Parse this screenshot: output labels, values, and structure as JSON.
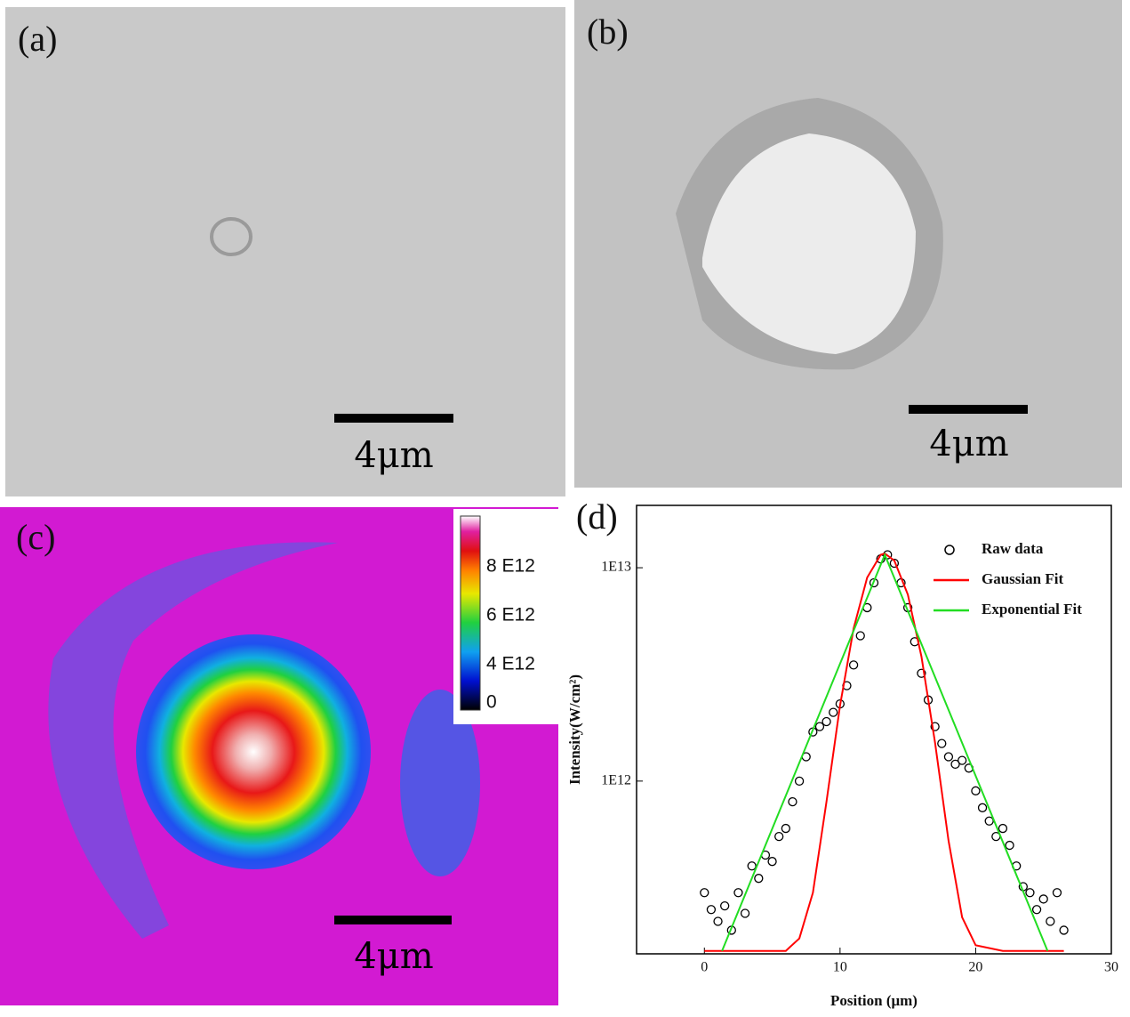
{
  "panels": {
    "a": {
      "label": "(a)",
      "scale_bar": "4μm"
    },
    "b": {
      "label": "(b)",
      "scale_bar": "4μm"
    },
    "c": {
      "label": "(c)",
      "scale_bar": "4μm",
      "colorbar": [
        "8 E12",
        "6 E12",
        "4 E12",
        "0"
      ]
    }
  },
  "chart_data": {
    "type": "line",
    "label": "(d)",
    "x_label": "Position (μm)",
    "y_label": "Intensity(W/cm²)",
    "xlim": [
      -5,
      30
    ],
    "xticks": [
      0,
      10,
      20,
      30
    ],
    "ylim": [
      155000000000.0,
      19600000000000.0
    ],
    "yscale": "log",
    "yticks": [
      {
        "value": 1000000000000.0,
        "label": "1E12"
      },
      {
        "value": 10000000000000.0,
        "label": "1E13"
      }
    ],
    "legend": "upper right",
    "series": [
      {
        "name": "Raw data",
        "color": "#000000",
        "mode": "markers",
        "x": [
          0,
          0.5,
          1,
          1.5,
          2,
          2.5,
          3,
          3.5,
          4,
          4.5,
          5,
          5.5,
          6,
          6.5,
          7,
          7.5,
          8,
          8.5,
          9,
          9.5,
          10,
          10.5,
          11,
          11.5,
          12,
          12.5,
          13,
          13.5,
          14,
          14.5,
          15,
          15.5,
          16,
          16.5,
          17,
          17.5,
          18,
          18.5,
          19,
          19.5,
          20,
          20.5,
          21,
          21.5,
          22,
          22.5,
          23,
          23.5,
          24,
          24.5,
          25,
          25.5,
          26,
          26.5
        ],
        "values": [
          300000000000.0,
          250000000000.0,
          220000000000.0,
          260000000000.0,
          200000000000.0,
          300000000000.0,
          240000000000.0,
          400000000000.0,
          350000000000.0,
          450000000000.0,
          420000000000.0,
          550000000000.0,
          600000000000.0,
          800000000000.0,
          1000000000000.0,
          1300000000000.0,
          1700000000000.0,
          1800000000000.0,
          1900000000000.0,
          2100000000000.0,
          2300000000000.0,
          2800000000000.0,
          3500000000000.0,
          4800000000000.0,
          6500000000000.0,
          8500000000000.0,
          11000000000000.0,
          11500000000000.0,
          10500000000000.0,
          8500000000000.0,
          6500000000000.0,
          4500000000000.0,
          3200000000000.0,
          2400000000000.0,
          1800000000000.0,
          1500000000000.0,
          1300000000000.0,
          1200000000000.0,
          1250000000000.0,
          1150000000000.0,
          900000000000.0,
          750000000000.0,
          650000000000.0,
          550000000000.0,
          600000000000.0,
          500000000000.0,
          400000000000.0,
          320000000000.0,
          300000000000.0,
          250000000000.0,
          280000000000.0,
          220000000000.0,
          300000000000.0,
          200000000000.0
        ]
      },
      {
        "name": "Gaussian Fit",
        "color": "#ff0000",
        "mode": "line",
        "x": [
          0,
          2,
          4,
          6,
          7,
          8,
          9,
          10,
          11,
          12,
          13,
          13.3,
          14,
          15,
          16,
          17,
          18,
          19,
          20,
          22,
          24,
          26.5
        ],
        "values": [
          160000000000.0,
          160000000000.0,
          160000000000.0,
          160000000000.0,
          183000000000.0,
          300000000000.0,
          800000000000.0,
          2260000000000.0,
          5190000000000.0,
          8990000000000.0,
          11500000000000.0,
          11660000000000.0,
          10810000000000.0,
          7480000000000.0,
          3840000000000.0,
          1520000000000.0,
          525000000000.0,
          230000000000.0,
          170000000000.0,
          160000000000.0,
          160000000000.0,
          160000000000.0
        ]
      },
      {
        "name": "Exponential Fit",
        "color": "#22dd22",
        "mode": "line",
        "x": [
          1.3,
          13.3,
          25.3
        ],
        "values": [
          160000000000.0,
          11500000000000.0,
          160000000000.0
        ]
      }
    ]
  }
}
